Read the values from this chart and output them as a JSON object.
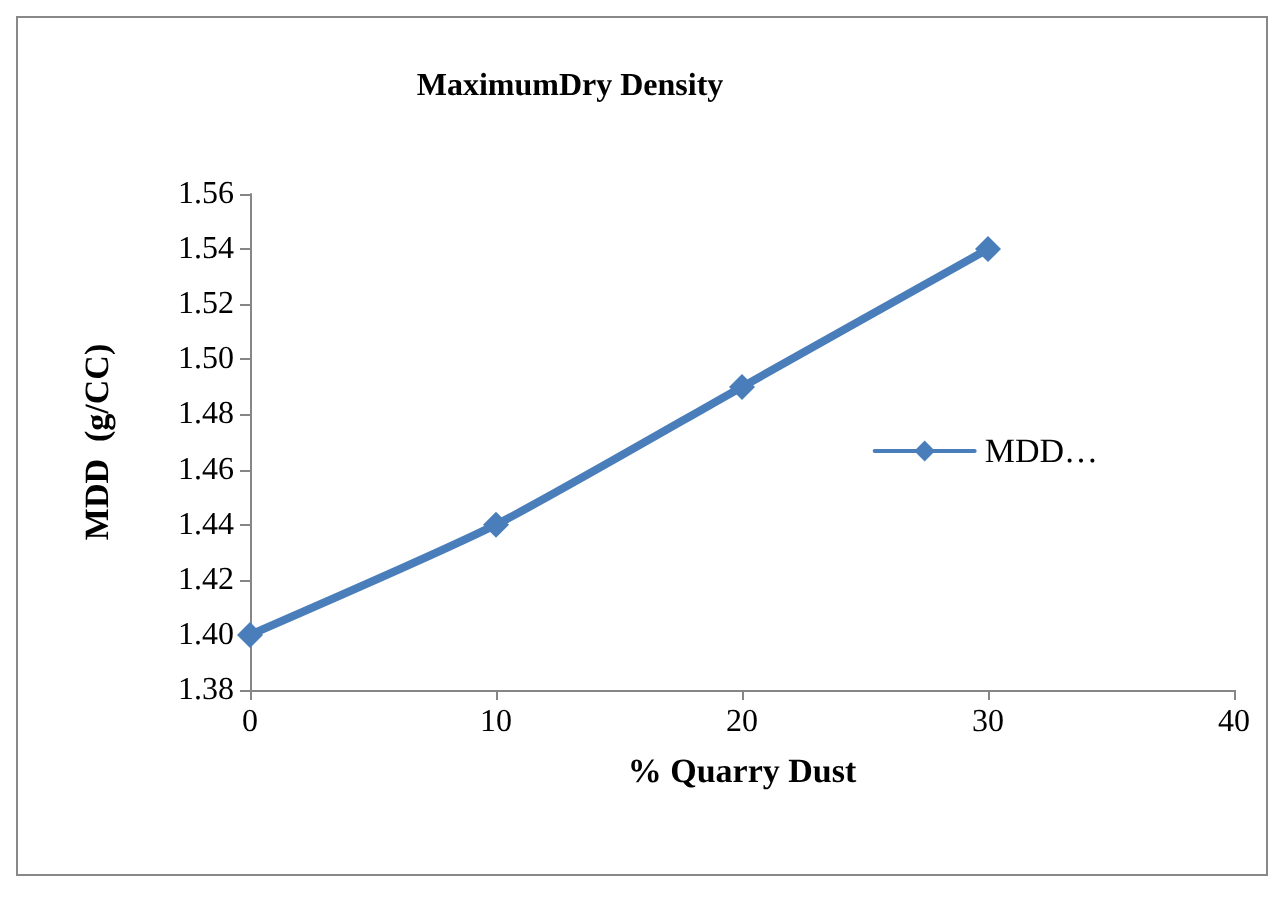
{
  "chart_data": {
    "type": "line",
    "title": "MaximumDry Density",
    "xlabel": "% Quarry Dust",
    "ylabel": "MDD  (g/CC)",
    "x": [
      0,
      10,
      20,
      30
    ],
    "series": [
      {
        "name": "MDD…",
        "color": "#4a7ebb",
        "values": [
          1.4,
          1.44,
          1.49,
          1.54
        ]
      }
    ],
    "xlim": [
      0,
      40
    ],
    "xticks": [
      0,
      10,
      20,
      30,
      40
    ],
    "ylim": [
      1.38,
      1.56
    ],
    "yticks": [
      {
        "value": 1.38,
        "label": "1.38"
      },
      {
        "value": 1.4,
        "label": "1.40"
      },
      {
        "value": 1.42,
        "label": "1.42"
      },
      {
        "value": 1.44,
        "label": "1.44"
      },
      {
        "value": 1.46,
        "label": "1.46"
      },
      {
        "value": 1.48,
        "label": "1.48"
      },
      {
        "value": 1.5,
        "label": "1.50"
      },
      {
        "value": 1.52,
        "label": "1.52"
      },
      {
        "value": 1.54,
        "label": "1.54"
      },
      {
        "value": 1.56,
        "label": "1.56"
      }
    ],
    "grid": false,
    "legend": "right",
    "marker": "diamond",
    "line_style": "solid"
  }
}
